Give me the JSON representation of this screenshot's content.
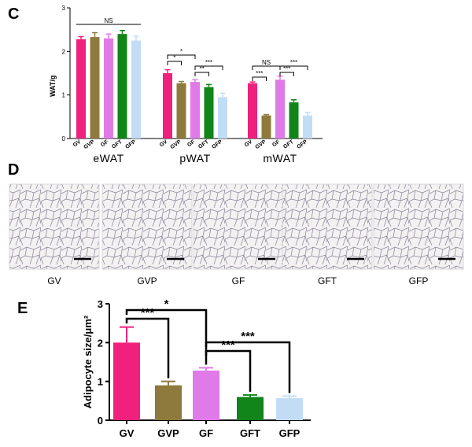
{
  "panels": {
    "c_label": "C",
    "d_label": "D",
    "e_label": "E"
  },
  "colors": {
    "GV": "#f0217c",
    "GVP": "#8f7a3e",
    "GF": "#e07ae8",
    "GFT": "#11841a",
    "GFP": "#c3dcf6"
  },
  "chart_data": [
    {
      "type": "bar",
      "panel": "C",
      "ylabel": "WAT/g",
      "ylim": [
        0,
        3
      ],
      "yticks": [
        "0",
        "1",
        "2",
        "3"
      ],
      "groups": [
        "eWAT",
        "pWAT",
        "mWAT"
      ],
      "categories": [
        "GV",
        "GVP",
        "GF",
        "GFT",
        "GFP"
      ],
      "series": [
        {
          "group": "eWAT",
          "values": [
            2.28,
            2.33,
            2.3,
            2.4,
            2.25
          ],
          "errors": [
            0.06,
            0.1,
            0.1,
            0.08,
            0.1
          ]
        },
        {
          "group": "pWAT",
          "values": [
            1.5,
            1.27,
            1.3,
            1.18,
            0.95
          ],
          "errors": [
            0.08,
            0.04,
            0.05,
            0.06,
            0.09
          ]
        },
        {
          "group": "mWAT",
          "values": [
            1.27,
            0.53,
            1.35,
            0.83,
            0.53
          ],
          "errors": [
            0.03,
            0.02,
            0.08,
            0.06,
            0.07
          ]
        }
      ],
      "annotations": [
        {
          "group": "eWAT",
          "from": "GV",
          "to": "GFP",
          "text": "NS"
        },
        {
          "group": "pWAT",
          "from": "GV",
          "to": "GVP",
          "text": "*"
        },
        {
          "group": "pWAT",
          "from": "GV",
          "to": "GF",
          "text": "*"
        },
        {
          "group": "pWAT",
          "from": "GF",
          "to": "GFT",
          "text": "**"
        },
        {
          "group": "pWAT",
          "from": "GF",
          "to": "GFP",
          "text": "***"
        },
        {
          "group": "mWAT",
          "from": "GV",
          "to": "GVP",
          "text": "***"
        },
        {
          "group": "mWAT",
          "from": "GV",
          "to": "GF",
          "text": "NS"
        },
        {
          "group": "mWAT",
          "from": "GF",
          "to": "GFT",
          "text": "***"
        },
        {
          "group": "mWAT",
          "from": "GF",
          "to": "GFP",
          "text": "***"
        }
      ]
    },
    {
      "type": "bar",
      "panel": "E",
      "ylabel": "Adipocyte size/μm²",
      "ylim": [
        0,
        3
      ],
      "yticks": [
        "0",
        "1",
        "2",
        "3"
      ],
      "categories": [
        "GV",
        "GVP",
        "GF",
        "GFT",
        "GFP"
      ],
      "values": [
        2.0,
        0.9,
        1.28,
        0.6,
        0.57
      ],
      "errors": [
        0.4,
        0.1,
        0.07,
        0.05,
        0.05
      ],
      "annotations": [
        {
          "from": "GV",
          "to": "GVP",
          "text": "***"
        },
        {
          "from": "GV",
          "to": "GF",
          "text": "*"
        },
        {
          "from": "GF",
          "to": "GFT",
          "text": "***"
        },
        {
          "from": "GF",
          "to": "GFP",
          "text": "***"
        }
      ]
    }
  ],
  "histology": {
    "labels": [
      "GV",
      "GVP",
      "GF",
      "GFT",
      "GFP"
    ]
  }
}
